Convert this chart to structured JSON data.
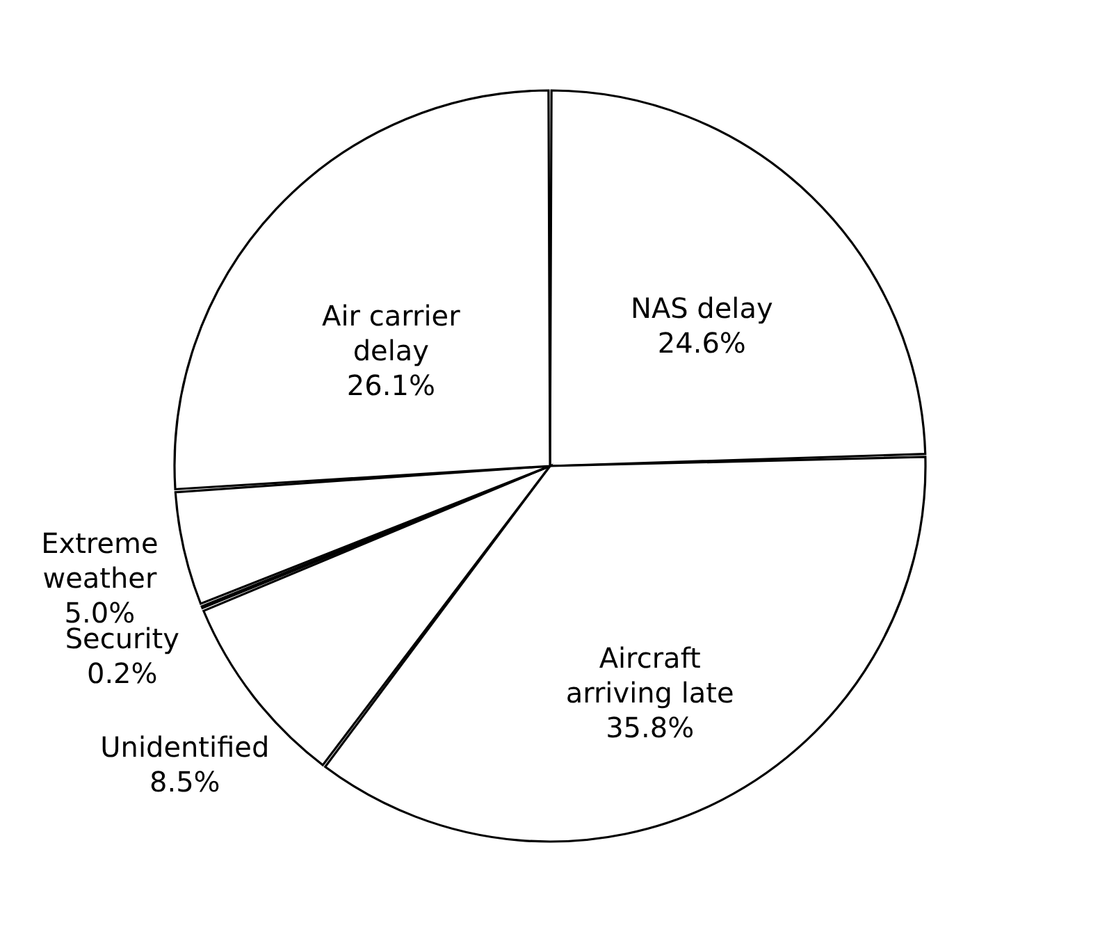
{
  "chart_data": {
    "type": "pie",
    "categories": [
      "NAS delay",
      "Aircraft arriving late",
      "Unidentified",
      "Security",
      "Extreme weather",
      "Air carrier delay"
    ],
    "values": [
      24.6,
      35.8,
      8.5,
      0.2,
      5.0,
      26.1
    ],
    "value_labels": [
      "24.6%",
      "35.8%",
      "8.5%",
      "0.2%",
      "5.0%",
      "26.1%"
    ],
    "colors": [
      "#ffffff",
      "#ffffff",
      "#ffffff",
      "#ffffff",
      "#ffffff",
      "#ffffff"
    ]
  }
}
